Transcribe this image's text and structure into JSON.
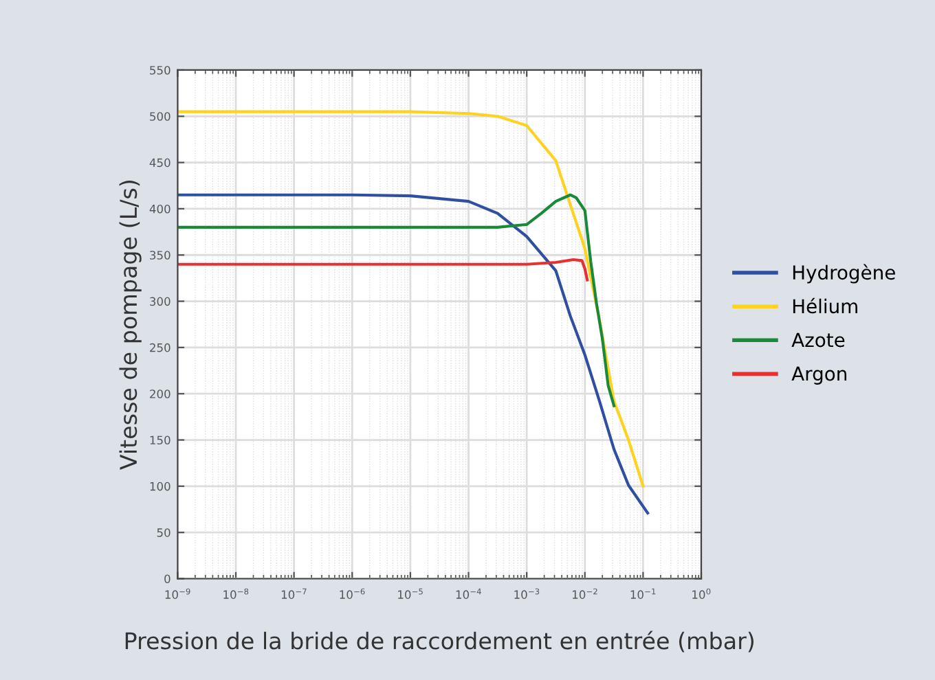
{
  "chart_data": {
    "type": "line",
    "xlabel": "Pression de la bride de raccordement en entrée (mbar)",
    "ylabel": "Vitesse de pompage (L/s)",
    "log": "x",
    "grid": true,
    "legend": "right",
    "marker": "none",
    "line_style": "solid",
    "xlim": [
      1e-09,
      1
    ],
    "ylim": [
      0,
      550
    ],
    "xticks": [
      {
        "value": 1e-09,
        "label": "10$^{−9}$"
      },
      {
        "value": 1e-08,
        "label": "10$^{−8}$"
      },
      {
        "value": 1e-07,
        "label": "10$^{−7}$"
      },
      {
        "value": 1e-06,
        "label": "10$^{−6}$"
      },
      {
        "value": 1e-05,
        "label": "10$^{−5}$"
      },
      {
        "value": 0.0001,
        "label": "10$^{−4}$"
      },
      {
        "value": 0.001,
        "label": "10$^{−3}$"
      },
      {
        "value": 0.01,
        "label": "10$^{−2}$"
      },
      {
        "value": 0.1,
        "label": "10$^{−1}$"
      },
      {
        "value": 1,
        "label": "10$^{0}$"
      }
    ],
    "yticks": [
      0,
      50,
      100,
      150,
      200,
      250,
      300,
      350,
      400,
      450,
      500,
      550
    ],
    "series": [
      {
        "name": "Hydrogène",
        "color": "#2f4fa0",
        "x": [
          1e-09,
          1e-06,
          1e-05,
          0.0001,
          0.000316,
          0.001,
          0.00316,
          0.00562,
          0.01,
          0.0178,
          0.0316,
          0.0562,
          0.12
        ],
        "values": [
          415,
          415,
          414,
          408,
          395,
          370,
          333,
          284,
          242,
          192,
          140,
          101,
          71
        ]
      },
      {
        "name": "Hélium",
        "color": "#ffd21f",
        "x": [
          1e-09,
          1e-05,
          0.0001,
          0.000316,
          0.001,
          0.00316,
          0.01,
          0.0178,
          0.0316,
          0.0562,
          0.1
        ],
        "values": [
          505,
          505,
          503,
          500,
          490,
          452,
          357,
          280,
          192,
          150,
          100
        ]
      },
      {
        "name": "Azote",
        "color": "#1a8a3a",
        "x": [
          1e-09,
          0.0001,
          0.000316,
          0.001,
          0.00178,
          0.00316,
          0.00562,
          0.00708,
          0.01,
          0.0126,
          0.0158,
          0.02,
          0.0251,
          0.0316
        ],
        "values": [
          380,
          380,
          380,
          383,
          395,
          408,
          415,
          412,
          398,
          343,
          298,
          259,
          209,
          187
        ]
      },
      {
        "name": "Argon",
        "color": "#e83030",
        "x": [
          1e-09,
          0.0001,
          0.001,
          0.00316,
          0.00631,
          0.00891,
          0.01,
          0.011
        ],
        "values": [
          340,
          340,
          340,
          342,
          345,
          344,
          335,
          323
        ]
      }
    ]
  }
}
